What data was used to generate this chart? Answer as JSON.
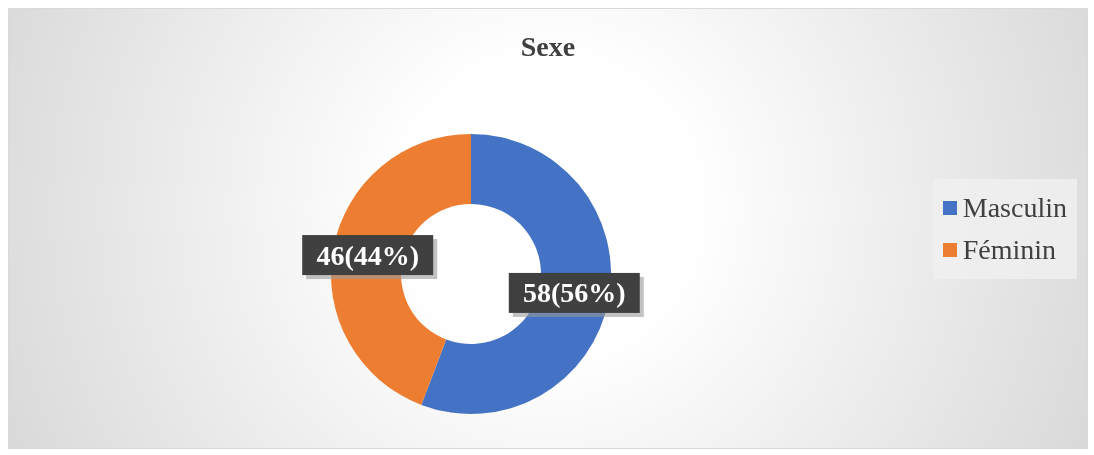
{
  "chart_data": {
    "type": "donut",
    "title": "Sexe",
    "categories": [
      "Masculin",
      "Féminin"
    ],
    "values": [
      58,
      46
    ],
    "colors": [
      "#4472c4",
      "#ed7d31"
    ],
    "value_labels": [
      "58(56%)",
      "46(44%)"
    ],
    "legend": "right"
  }
}
